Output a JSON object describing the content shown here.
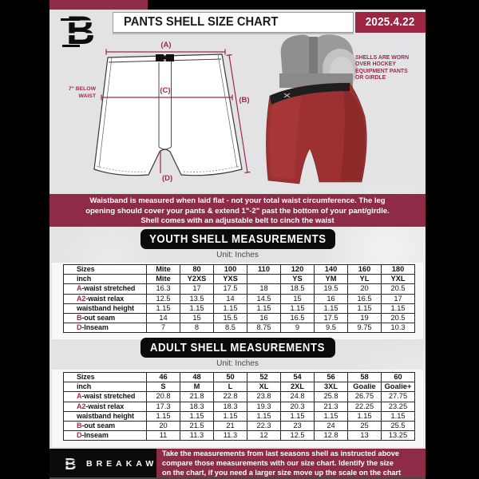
{
  "header": {
    "title": "PANTS SHELL SIZE CHART",
    "date": "2025.4.22"
  },
  "colors": {
    "maroon": "#8e2b47",
    "date_red": "#9d2544",
    "label_maroon": "#9c2b47",
    "page_gray": "#e3e3e5"
  },
  "diagram": {
    "label_a": "(A)",
    "label_b": "(B)",
    "label_c": "(C)",
    "label_d": "(D)",
    "waist_note": [
      "7\" BELOW",
      "WAIST"
    ],
    "photo_caption": [
      "SHELLS ARE WORN",
      "OVER HOCKEY",
      "EQUIPMENT PANTS",
      "OR GIRDLE"
    ]
  },
  "notice_banner": {
    "lines": [
      "Waistband is measured when laid flat - not your total waist circumference. The leg",
      "opening should cover your pants & extend 1\"-2\" past the bottom of your pant/girdle.",
      "Shell comes with an adjustable belt to cinch the waist"
    ]
  },
  "youth": {
    "heading": "YOUTH SHELL MEASUREMENTS",
    "unit": "Unit: Inches",
    "rows": [
      {
        "prefix": "",
        "label": "Sizes",
        "header": true,
        "values": [
          "Mite",
          "80",
          "100",
          "110",
          "120",
          "140",
          "160",
          "180"
        ]
      },
      {
        "prefix": "",
        "label": "inch",
        "header": true,
        "values": [
          "Mite",
          "Y2XS",
          "YXS",
          "",
          "YS",
          "YM",
          "YL",
          "YXL"
        ]
      },
      {
        "prefix": "A",
        "label": "-waist stretched",
        "values": [
          "16.3",
          "17",
          "17.5",
          "18",
          "18.5",
          "19.5",
          "20",
          "20.5"
        ]
      },
      {
        "prefix": "A2",
        "label": "-waist relax",
        "values": [
          "12.5",
          "13.5",
          "14",
          "14.5",
          "15",
          "16",
          "16.5",
          "17"
        ]
      },
      {
        "prefix": "",
        "label": "waistband height",
        "values": [
          "1.15",
          "1.15",
          "1.15",
          "1.15",
          "1.15",
          "1.15",
          "1.15",
          "1.15"
        ]
      },
      {
        "prefix": "B",
        "label": "-out seam",
        "values": [
          "14",
          "15",
          "15.5",
          "16",
          "16.5",
          "17.5",
          "19",
          "20.5"
        ]
      },
      {
        "prefix": "D",
        "label": "-Inseam",
        "values": [
          "7",
          "8",
          "8.5",
          "8.75",
          "9",
          "9.5",
          "9.75",
          "10.3"
        ]
      }
    ]
  },
  "adult": {
    "heading": "ADULT SHELL MEASUREMENTS",
    "unit": "Unit: Inches",
    "rows": [
      {
        "prefix": "",
        "label": "Sizes",
        "header": true,
        "values": [
          "46",
          "48",
          "50",
          "52",
          "54",
          "56",
          "58",
          "60"
        ]
      },
      {
        "prefix": "",
        "label": "inch",
        "header": true,
        "values": [
          "S",
          "M",
          "L",
          "XL",
          "2XL",
          "3XL",
          "Goalie",
          "Goalie+"
        ]
      },
      {
        "prefix": "A",
        "label": "-waist stretched",
        "values": [
          "20.8",
          "21.8",
          "22.8",
          "23.8",
          "24.8",
          "25.8",
          "26.75",
          "27.75"
        ]
      },
      {
        "prefix": "A2",
        "label": "-waist relax",
        "values": [
          "17.3",
          "18.3",
          "18.3",
          "19.3",
          "20.3",
          "21.3",
          "22.25",
          "23.25"
        ]
      },
      {
        "prefix": "",
        "label": "waistband height",
        "values": [
          "1.15",
          "1.15",
          "1.15",
          "1.15",
          "1.15",
          "1.15",
          "1.15",
          "1.15"
        ]
      },
      {
        "prefix": "B",
        "label": "-out seam",
        "values": [
          "20",
          "21.5",
          "21",
          "22.3",
          "23",
          "24",
          "25",
          "25.5"
        ]
      },
      {
        "prefix": "D",
        "label": "-Inseam",
        "values": [
          "11",
          "11.3",
          "11.3",
          "12",
          "12.5",
          "12.8",
          "13",
          "13.25"
        ]
      }
    ]
  },
  "footer": {
    "brand": "BREAKAWAY",
    "lines": [
      "Take the measurements from last seasons shell as instructed above",
      "compare those measurements  with our size chart. Identify the size",
      "on the chart, if you need a larger size move up the scale on the chart"
    ]
  }
}
